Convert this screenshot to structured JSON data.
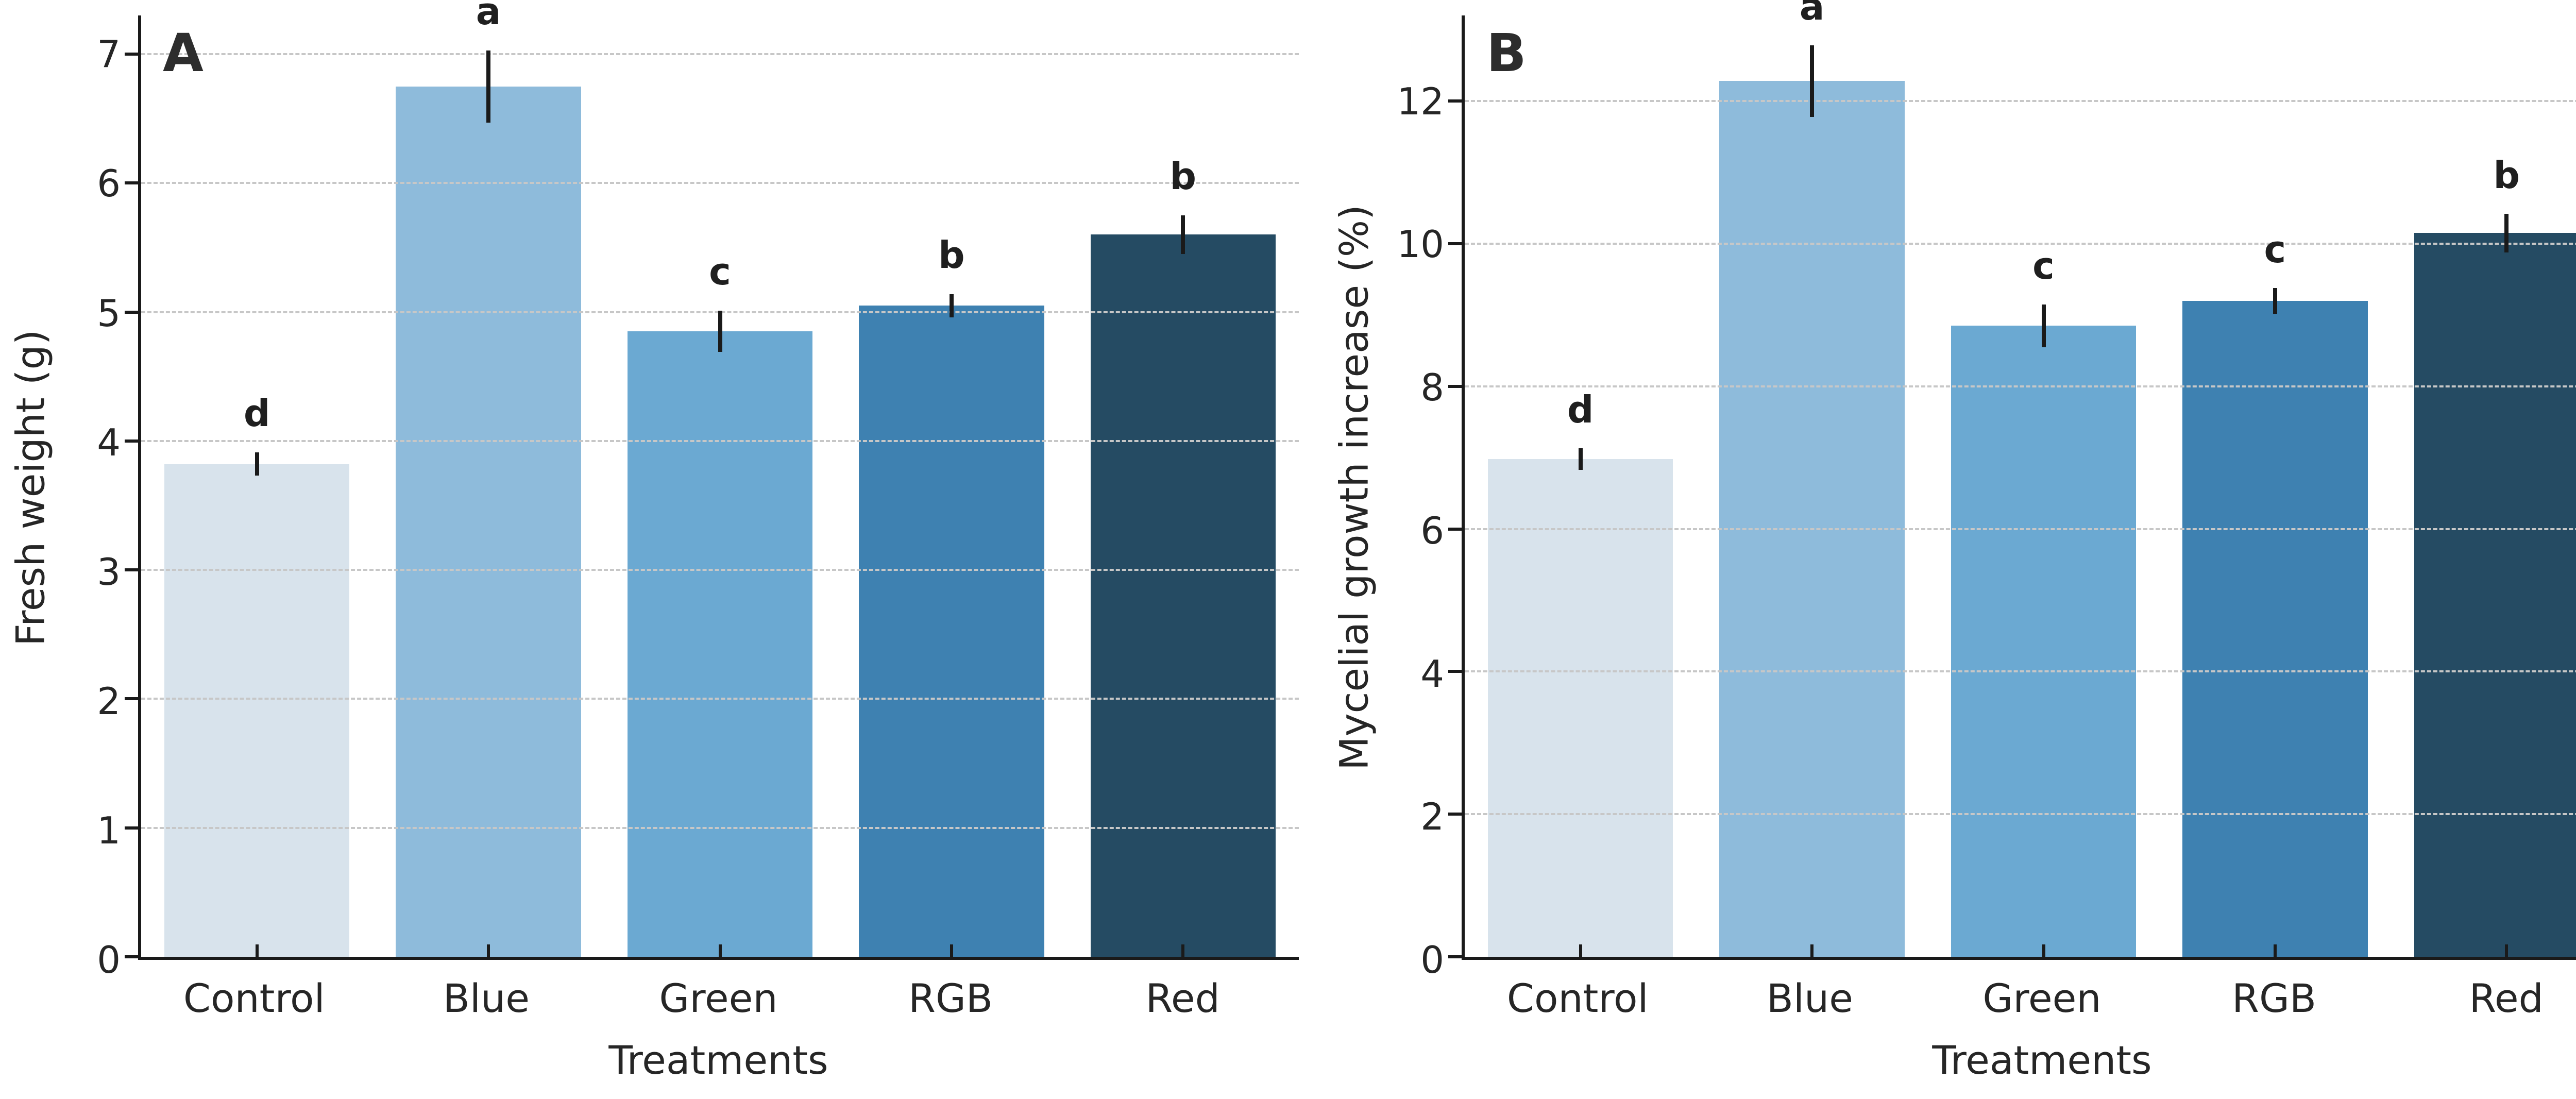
{
  "figure": {
    "background": "#ffffff",
    "panel_count": 2
  },
  "style": {
    "axis_color": "#1a1a1a",
    "grid_color": "#c7c7c7",
    "text_color": "#262626",
    "error_bar_color": "#1a1a1a"
  },
  "chart_data": [
    {
      "type": "bar",
      "panel_label": "A",
      "title": "",
      "xlabel": "Treatments",
      "ylabel": "Fresh weight (g)",
      "categories": [
        "Control",
        "Blue",
        "Green",
        "RGB",
        "Red"
      ],
      "values": [
        3.82,
        6.75,
        4.85,
        5.05,
        5.6
      ],
      "errors": [
        0.09,
        0.28,
        0.16,
        0.09,
        0.15
      ],
      "sig_letters": [
        "d",
        "a",
        "c",
        "b",
        "b"
      ],
      "bar_colors": [
        "#d8e3ec",
        "#8ebbdb",
        "#6ba9d2",
        "#3e81b1",
        "#254b63"
      ],
      "yticks": [
        0,
        1,
        2,
        3,
        4,
        5,
        6,
        7
      ],
      "ylim": [
        0,
        7.3
      ],
      "grid": "dashed-horizontal",
      "letter_pad": 0.16
    },
    {
      "type": "bar",
      "panel_label": "B",
      "title": "",
      "xlabel": "Treatments",
      "ylabel": "Mycelial growth increase (%)",
      "categories": [
        "Control",
        "Blue",
        "Green",
        "RGB",
        "Red"
      ],
      "values": [
        6.98,
        12.28,
        8.85,
        9.2,
        10.15
      ],
      "errors": [
        0.15,
        0.5,
        0.3,
        0.18,
        0.27
      ],
      "sig_letters": [
        "d",
        "a",
        "c",
        "c",
        "b"
      ],
      "bar_colors": [
        "#d8e3ec",
        "#8ebbdb",
        "#6ba9d2",
        "#3e81b1",
        "#254b63"
      ],
      "yticks": [
        0,
        2,
        4,
        6,
        8,
        10,
        12
      ],
      "ylim": [
        0,
        13.2
      ],
      "grid": "dashed-horizontal",
      "letter_pad": 0.28
    }
  ]
}
